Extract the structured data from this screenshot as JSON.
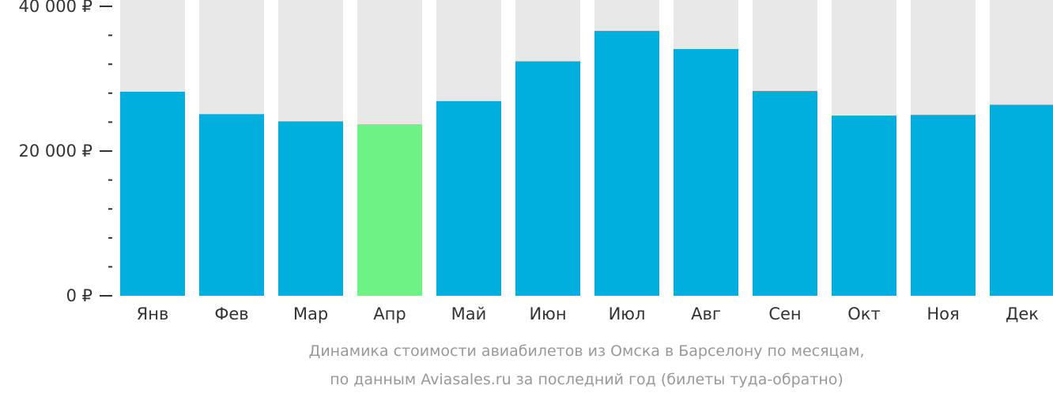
{
  "chart_data": {
    "type": "bar",
    "categories": [
      "Янв",
      "Фев",
      "Мар",
      "Апр",
      "Май",
      "Июн",
      "Июл",
      "Авг",
      "Сен",
      "Окт",
      "Ноя",
      "Дек"
    ],
    "values": [
      28200,
      25100,
      24100,
      23700,
      26900,
      32400,
      36600,
      34100,
      28300,
      24900,
      25000,
      26400
    ],
    "highlight_index": 3,
    "ylim": [
      0,
      40000
    ],
    "yticks": [
      {
        "value": 0,
        "label": "0 ₽"
      },
      {
        "value": 20000,
        "label": "20 000 ₽"
      },
      {
        "value": 40000,
        "label": "40 000 ₽"
      }
    ],
    "minor_tick_step": 4000,
    "colors": {
      "bar": "#00b0dc",
      "highlight": "#6cf285",
      "track": "#e8e8e8",
      "tick_text": "#333333",
      "caption": "#999999"
    },
    "caption_lines": [
      "Динамика стоимости авиабилетов из Омска в Барселону по месяцам,",
      "по данным Aviasales.ru за последний год (билеты туда-обратно)"
    ]
  }
}
